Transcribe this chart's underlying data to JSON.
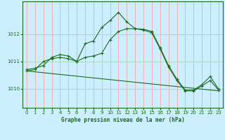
{
  "bg_color": "#cceeff",
  "grid_color_v": "#ff9999",
  "grid_color_h": "#aaddbb",
  "line_color": "#1a6b1a",
  "title": "Graphe pression niveau de la mer (hPa)",
  "xlim": [
    -0.5,
    23.5
  ],
  "ylim": [
    1009.3,
    1013.2
  ],
  "yticks": [
    1010,
    1011,
    1012
  ],
  "xticks": [
    0,
    1,
    2,
    3,
    4,
    5,
    6,
    7,
    8,
    9,
    10,
    11,
    12,
    13,
    14,
    15,
    16,
    17,
    18,
    19,
    20,
    21,
    22,
    23
  ],
  "series1": {
    "x": [
      0,
      1,
      2,
      3,
      4,
      5,
      6,
      7,
      8,
      9,
      10,
      11,
      12,
      13,
      14,
      15,
      16,
      17,
      18,
      19,
      20,
      21,
      22,
      23
    ],
    "y": [
      1010.7,
      1010.75,
      1010.85,
      1011.15,
      1011.25,
      1011.2,
      1011.0,
      1011.65,
      1011.75,
      1012.25,
      1012.5,
      1012.8,
      1012.45,
      1012.2,
      1012.18,
      1012.1,
      1011.5,
      1010.85,
      1010.35,
      1009.95,
      1009.95,
      1010.15,
      1010.45,
      1009.98
    ]
  },
  "series2": {
    "x": [
      0,
      1,
      2,
      3,
      4,
      5,
      6,
      7,
      8,
      9,
      10,
      11,
      12,
      13,
      14,
      15,
      16,
      17,
      18,
      19,
      20,
      21,
      22,
      23
    ],
    "y": [
      1010.65,
      1010.7,
      1011.0,
      1011.1,
      1011.15,
      1011.1,
      1011.0,
      1011.15,
      1011.2,
      1011.3,
      1011.8,
      1012.1,
      1012.2,
      1012.2,
      1012.15,
      1012.05,
      1011.45,
      1010.8,
      1010.3,
      1009.92,
      1009.92,
      1010.1,
      1010.3,
      1009.95
    ]
  },
  "series3": {
    "x": [
      0,
      23
    ],
    "y": [
      1010.65,
      1009.92
    ]
  }
}
